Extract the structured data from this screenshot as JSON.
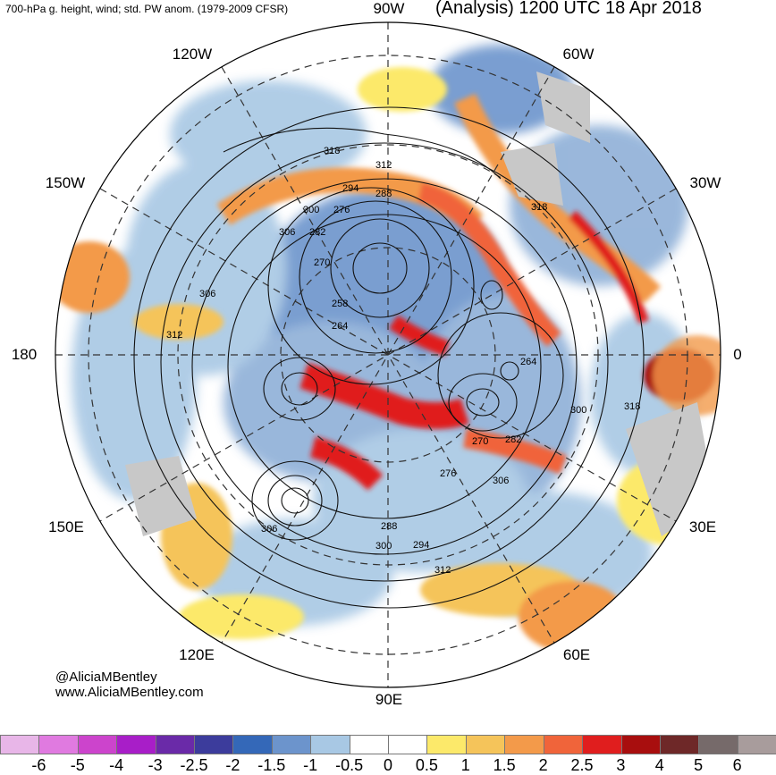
{
  "header": {
    "left_title": "700-hPa g. height, wind; std. PW anom. (1979-2009 CFSR)",
    "right_title": "(Analysis) 1200 UTC 18 Apr 2018"
  },
  "longitude_labels": {
    "n90w": "90W",
    "n120w": "120W",
    "n60w": "60W",
    "n150w": "150W",
    "n30w": "30W",
    "n180": "180",
    "n0": "0",
    "n150e": "150E",
    "n30e": "30E",
    "n120e": "120E",
    "n60e": "60E",
    "n90e": "90E"
  },
  "credits": {
    "handle": "@AliciaMBentley",
    "website": "www.AliciaMBentley.com"
  },
  "contour_labels": [
    "318",
    "312",
    "294",
    "288",
    "300",
    "276",
    "306",
    "282",
    "270",
    "306",
    "312",
    "258",
    "264",
    "264",
    "300",
    "318",
    "270",
    "282",
    "276",
    "306",
    "288",
    "300",
    "294",
    "312",
    "306",
    "318"
  ],
  "colorbar": {
    "colors": [
      "#e8b6e8",
      "#e07ae0",
      "#cc44cc",
      "#a81ec8",
      "#6a2aa8",
      "#3c3c9c",
      "#3468b8",
      "#6c94cc",
      "#a8c8e4",
      "#ffffff",
      "#ffffff",
      "#fce96a",
      "#f5c45a",
      "#f39a4a",
      "#f0643a",
      "#e01e1e",
      "#a80e0e",
      "#6e2828",
      "#766a6a",
      "#a89c9c"
    ],
    "ticks": [
      "-6",
      "-5",
      "-4",
      "-3",
      "-2.5",
      "-2",
      "-1.5",
      "-1",
      "-0.5",
      "0",
      "0.5",
      "1",
      "1.5",
      "2",
      "2.5",
      "3",
      "4",
      "5",
      "6"
    ]
  }
}
